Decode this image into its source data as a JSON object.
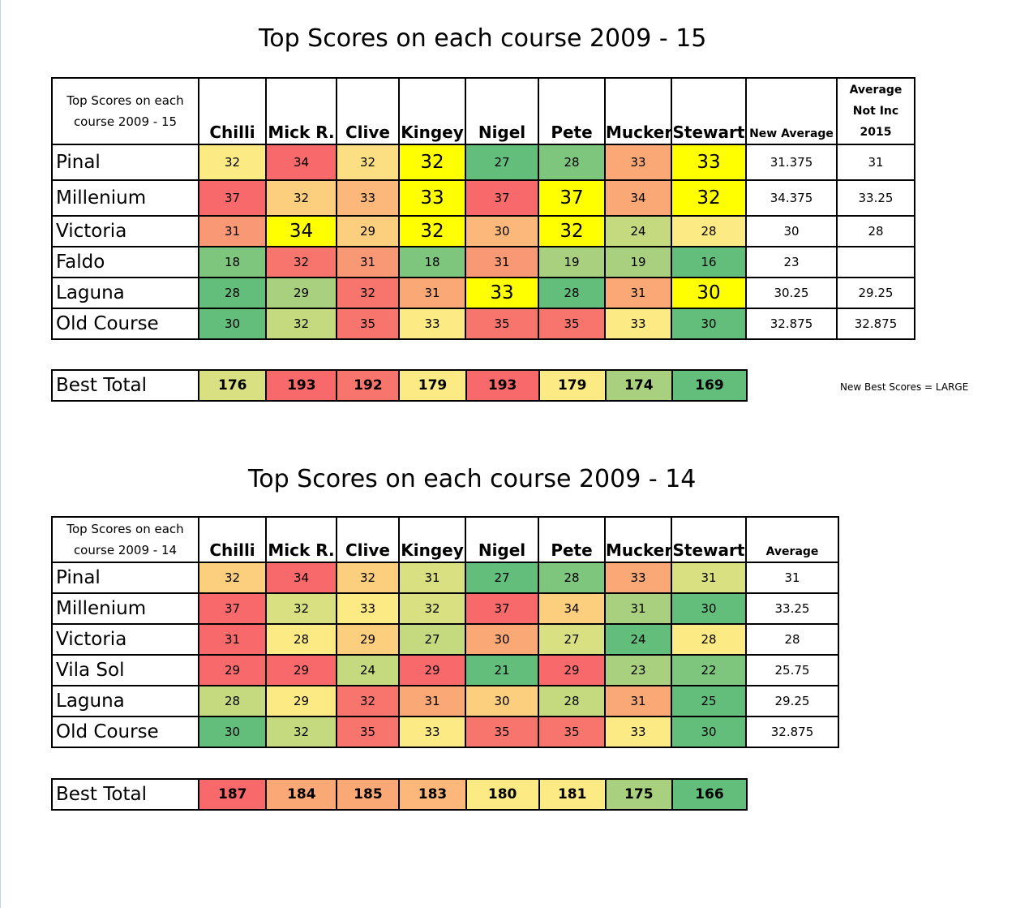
{
  "colors": {
    "y": "#ffff00",
    "g1": "#63be7b",
    "g2": "#7ec67e",
    "g3": "#a9d07f",
    "g4": "#c5d97f",
    "g5": "#d8e082",
    "g6": "#fcea84",
    "g7": "#fddf83",
    "o1": "#fccf7f",
    "o2": "#fbb87a",
    "o3": "#faa876",
    "o4": "#f99874",
    "r1": "#f8756d",
    "r2": "#f8696b"
  },
  "table2015": {
    "title": "Top Scores on each course 2009 - 15",
    "corner_label": "Top Scores on each course 2009 - 15",
    "players": [
      "Chilli",
      "Mick R.",
      "Clive",
      "Kingey",
      "Nigel",
      "Pete",
      "Mucker",
      "Stewart"
    ],
    "new_average_label": "New Average",
    "avg_not_inc_label": "Average Not Inc 2015",
    "rows": [
      {
        "course": "Pinal",
        "scores": [
          "32",
          "34",
          "32",
          "32",
          "27",
          "28",
          "33",
          "33"
        ],
        "large": [
          false,
          false,
          false,
          true,
          false,
          false,
          false,
          true
        ],
        "colors": [
          "g6",
          "r2",
          "g7",
          "y",
          "g1",
          "g2",
          "o3",
          "y"
        ],
        "new_average": "31.375",
        "avg_not_inc": "31"
      },
      {
        "course": "Millenium",
        "scores": [
          "37",
          "32",
          "33",
          "33",
          "37",
          "37",
          "34",
          "32"
        ],
        "large": [
          false,
          false,
          false,
          true,
          false,
          true,
          false,
          true
        ],
        "colors": [
          "r2",
          "o1",
          "o2",
          "y",
          "r2",
          "y",
          "o3",
          "y"
        ],
        "new_average": "34.375",
        "avg_not_inc": "33.25"
      },
      {
        "course": "Victoria",
        "scores": [
          "31",
          "34",
          "29",
          "32",
          "30",
          "32",
          "24",
          "28"
        ],
        "large": [
          false,
          true,
          false,
          true,
          false,
          true,
          false,
          false
        ],
        "colors": [
          "o4",
          "y",
          "o1",
          "y",
          "o2",
          "y",
          "g4",
          "g6"
        ],
        "new_average": "30",
        "avg_not_inc": "28"
      },
      {
        "course": "Faldo",
        "scores": [
          "18",
          "32",
          "31",
          "18",
          "31",
          "19",
          "19",
          "16"
        ],
        "large": [
          false,
          false,
          false,
          false,
          false,
          false,
          false,
          false
        ],
        "colors": [
          "g2",
          "r1",
          "o4",
          "g2",
          "o4",
          "g3",
          "g3",
          "g1"
        ],
        "new_average": "23",
        "avg_not_inc": ""
      },
      {
        "course": "Laguna",
        "scores": [
          "28",
          "29",
          "32",
          "31",
          "33",
          "28",
          "31",
          "30"
        ],
        "large": [
          false,
          false,
          false,
          false,
          true,
          false,
          false,
          true
        ],
        "colors": [
          "g1",
          "g3",
          "r1",
          "o3",
          "y",
          "g1",
          "o3",
          "y"
        ],
        "new_average": "30.25",
        "avg_not_inc": "29.25"
      },
      {
        "course": "Old Course",
        "scores": [
          "30",
          "32",
          "35",
          "33",
          "35",
          "35",
          "33",
          "30"
        ],
        "large": [
          false,
          false,
          false,
          false,
          false,
          false,
          false,
          false
        ],
        "colors": [
          "g1",
          "g4",
          "r1",
          "g6",
          "r1",
          "r1",
          "g6",
          "g1"
        ],
        "new_average": "32.875",
        "avg_not_inc": "32.875"
      }
    ],
    "best_total_label": "Best Total",
    "best_totals": [
      "176",
      "193",
      "192",
      "179",
      "193",
      "179",
      "174",
      "169"
    ],
    "best_total_colors": [
      "g5",
      "r2",
      "r1",
      "g6",
      "r2",
      "g6",
      "g3",
      "g1"
    ]
  },
  "legend_note": "New Best Scores = LARGE",
  "table2014": {
    "title": "Top Scores on each course 2009 - 14",
    "corner_label": "Top Scores on each course 2009 - 14",
    "players": [
      "Chilli",
      "Mick R.",
      "Clive",
      "Kingey",
      "Nigel",
      "Pete",
      "Mucker",
      "Stewart"
    ],
    "average_label": "Average",
    "rows": [
      {
        "course": "Pinal",
        "scores": [
          "32",
          "34",
          "32",
          "31",
          "27",
          "28",
          "33",
          "31"
        ],
        "colors": [
          "o1",
          "r2",
          "o1",
          "g5",
          "g1",
          "g2",
          "o3",
          "g5"
        ],
        "average": "31"
      },
      {
        "course": "Millenium",
        "scores": [
          "37",
          "32",
          "33",
          "32",
          "37",
          "34",
          "31",
          "30"
        ],
        "colors": [
          "r2",
          "g5",
          "g6",
          "g5",
          "r2",
          "o1",
          "g3",
          "g1"
        ],
        "average": "33.25"
      },
      {
        "course": "Victoria",
        "scores": [
          "31",
          "28",
          "29",
          "27",
          "30",
          "27",
          "24",
          "28"
        ],
        "colors": [
          "r2",
          "g6",
          "o1",
          "g4",
          "o3",
          "g5",
          "g1",
          "g6"
        ],
        "average": "28"
      },
      {
        "course": "Vila Sol",
        "scores": [
          "29",
          "29",
          "24",
          "29",
          "21",
          "29",
          "23",
          "22"
        ],
        "colors": [
          "r2",
          "r2",
          "g4",
          "r2",
          "g1",
          "r2",
          "g3",
          "g2"
        ],
        "average": "25.75"
      },
      {
        "course": "Laguna",
        "scores": [
          "28",
          "29",
          "32",
          "31",
          "30",
          "28",
          "31",
          "25"
        ],
        "colors": [
          "g4",
          "g6",
          "r1",
          "o3",
          "o1",
          "g4",
          "o3",
          "g1"
        ],
        "average": "29.25"
      },
      {
        "course": "Old Course",
        "scores": [
          "30",
          "32",
          "35",
          "33",
          "35",
          "35",
          "33",
          "30"
        ],
        "colors": [
          "g1",
          "g4",
          "r1",
          "g6",
          "r1",
          "r1",
          "g6",
          "g1"
        ],
        "average": "32.875"
      }
    ],
    "best_total_label": "Best Total",
    "best_totals": [
      "187",
      "184",
      "185",
      "183",
      "180",
      "181",
      "175",
      "166"
    ],
    "best_total_colors": [
      "r2",
      "o3",
      "o3",
      "o2",
      "g6",
      "g6",
      "g3",
      "g1"
    ]
  }
}
